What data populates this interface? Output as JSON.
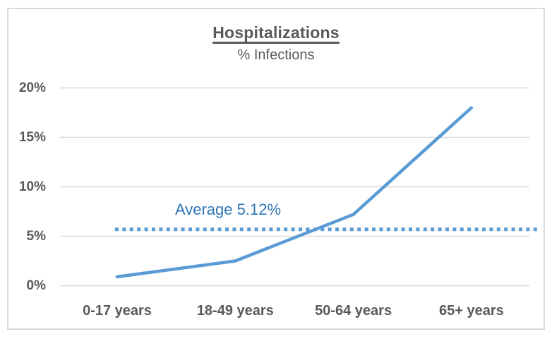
{
  "chart_data": {
    "type": "line",
    "title": "Hospitalizations",
    "subtitle": "% Infections",
    "categories": [
      "0-17 years",
      "18-49 years",
      "50-64 years",
      "65+ years"
    ],
    "values": [
      0.9,
      2.5,
      7.2,
      18.0
    ],
    "xlabel": "",
    "ylabel": "",
    "ylim": [
      0,
      20
    ],
    "ytick_step": 5,
    "ytick_labels": [
      "0%",
      "5%",
      "10%",
      "15%",
      "20%"
    ],
    "grid": true,
    "legend": "none",
    "average": {
      "label": "Average 5.12%",
      "value": 5.12,
      "line_position_pct": 5.7,
      "line_style": "dotted"
    },
    "colors": {
      "line": "#5B9BD5",
      "average_line": "#5B9BD5",
      "average_text": "#2E75B6",
      "grid": "#D9D9D9",
      "text": "#595959",
      "border": "#D9D9D9",
      "background": "#FFFFFF"
    }
  }
}
